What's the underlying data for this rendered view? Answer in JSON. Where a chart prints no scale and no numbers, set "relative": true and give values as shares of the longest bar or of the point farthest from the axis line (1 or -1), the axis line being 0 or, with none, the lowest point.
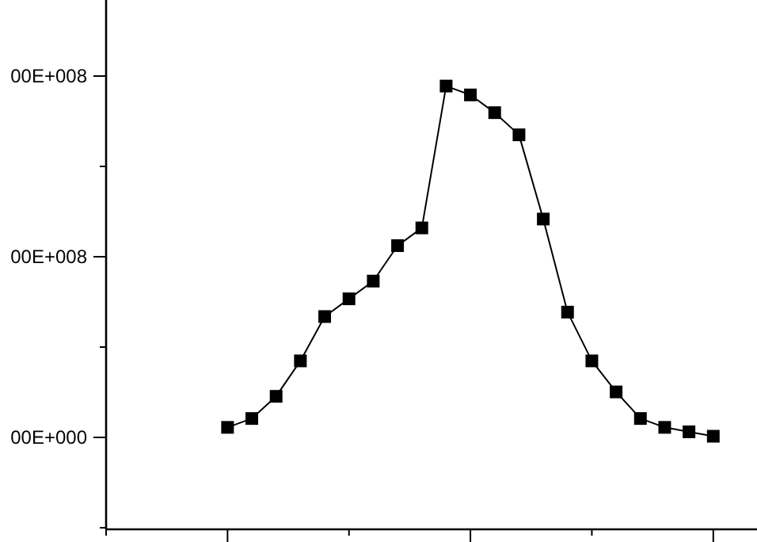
{
  "chart_data": {
    "type": "line",
    "relative": true,
    "categories": [
      null,
      null,
      null,
      null,
      null,
      null,
      null,
      null,
      null,
      null,
      null,
      null,
      null,
      null,
      null,
      null,
      null,
      null,
      null,
      null,
      null
    ],
    "series": [
      {
        "color": "#000000",
        "values": [
          0.23,
          0.25,
          0.3,
          0.38,
          0.48,
          0.52,
          0.56,
          0.64,
          0.68,
          1,
          0.98,
          0.94,
          0.89,
          0.7,
          0.49,
          0.38,
          0.31,
          0.25,
          0.23,
          0.22,
          0.21
        ]
      }
    ],
    "annotations": [
      "00E+008",
      "00E+008",
      "00E+000"
    ],
    "marker": "square",
    "line_style": "solid"
  }
}
